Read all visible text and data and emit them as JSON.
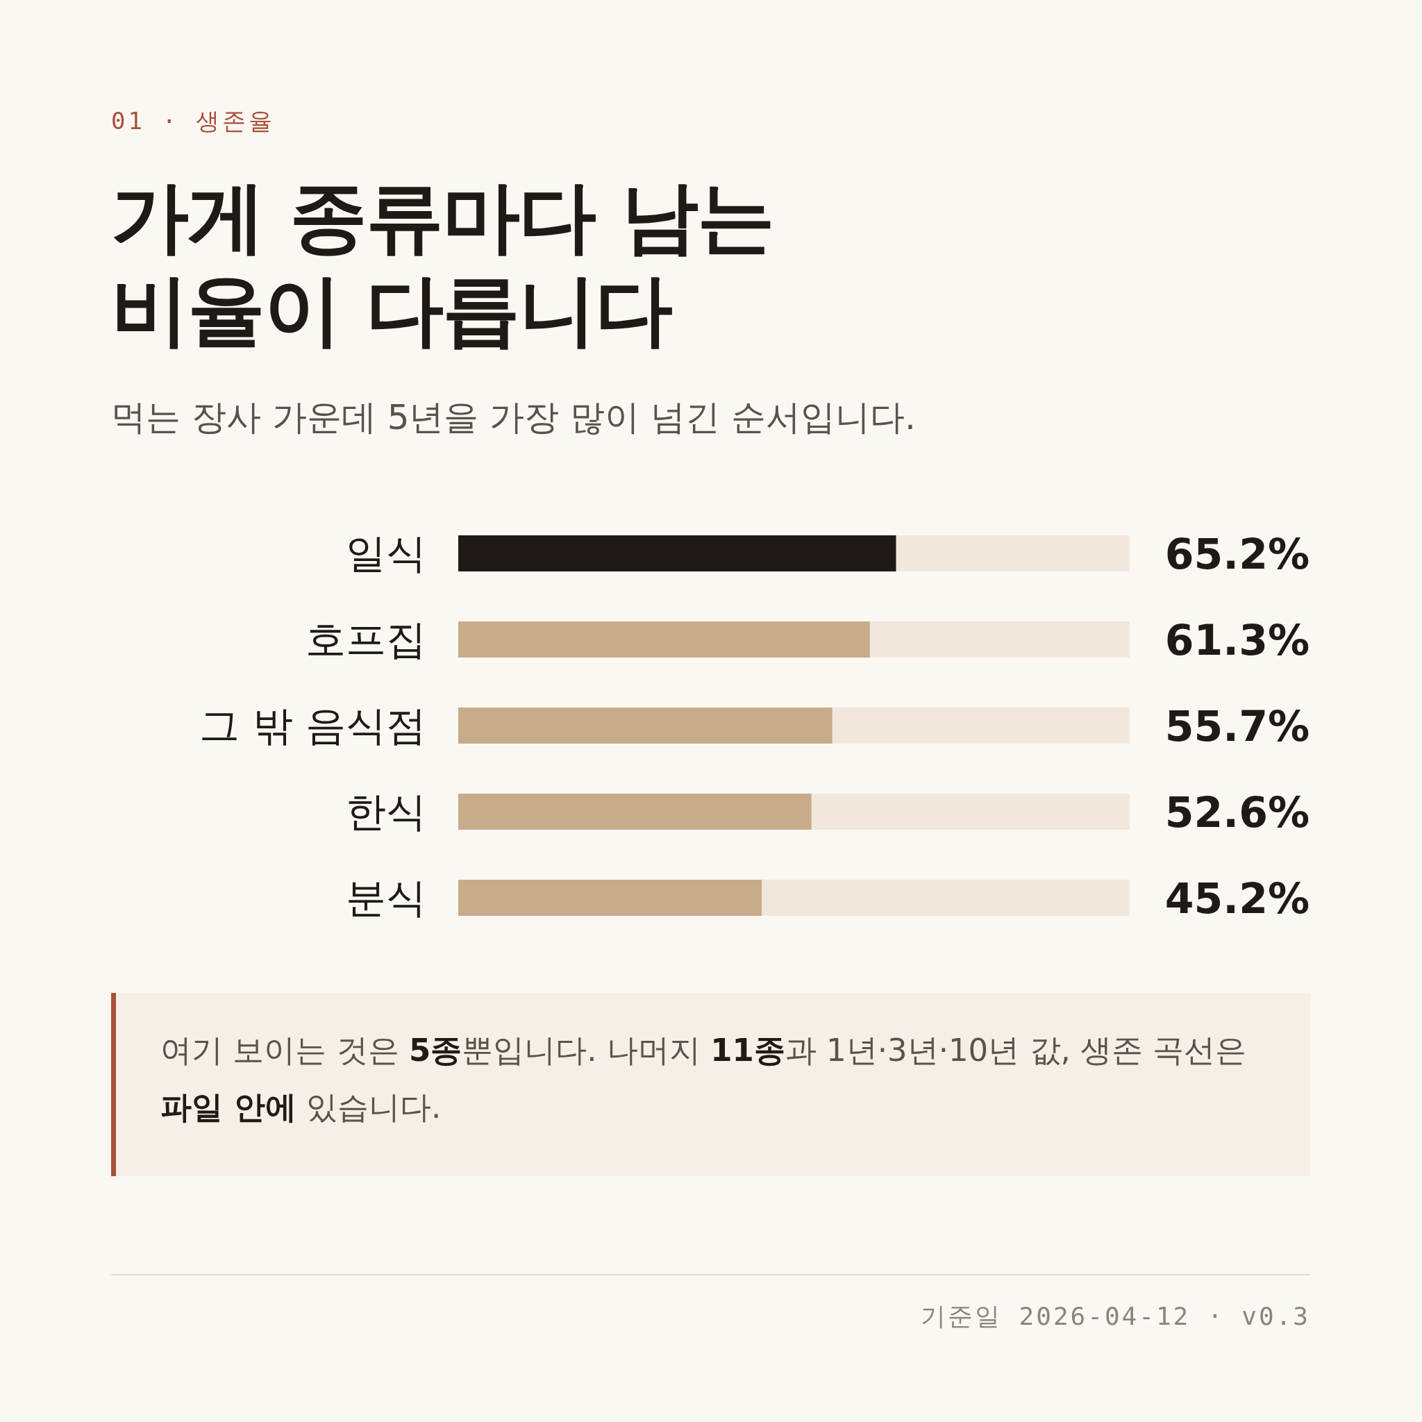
{
  "chart_data": {
    "type": "bar",
    "orientation": "horizontal",
    "title": "가게 종류마다 남는 비율이 다릅니다",
    "subtitle": "먹는 장사 가운데 5년을 가장 많이 넘긴 순서입니다.",
    "categories": [
      "일식",
      "호프집",
      "그 밖 음식점",
      "한식",
      "분식"
    ],
    "values": [
      65.2,
      61.3,
      55.7,
      52.6,
      45.2
    ],
    "colors": [
      "#1f1a17",
      "#c8ab8a",
      "#c8ab8a",
      "#c8ab8a",
      "#c8ab8a"
    ],
    "value_labels": [
      "65.2%",
      "61.3%",
      "55.7%",
      "52.6%",
      "45.2%"
    ],
    "xlim": [
      0,
      100
    ],
    "tick_labels": "y",
    "annotations": [
      "01 · 생존율",
      "여기 보이는 것은 **5종**뿐입니다. 나머지 **11종**과 1년·3년·10년 값, 생존 곡선은 **파일 안에** 있습니다.",
      "기준일 2026-04-12 · v0.3"
    ]
  }
}
